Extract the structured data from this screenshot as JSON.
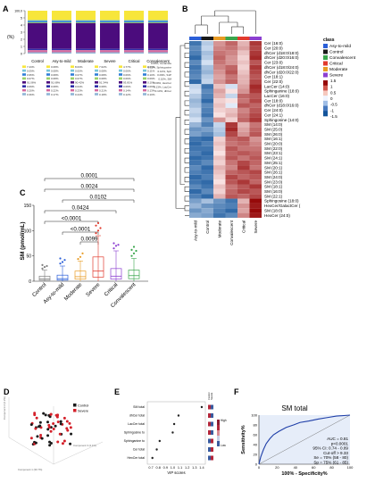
{
  "panels": {
    "A": {
      "letter": "A",
      "yticks": [
        "100.0",
        "5",
        "4",
        "3",
        "2",
        "1",
        "0"
      ],
      "ylabel": "(%)",
      "categories": [
        "Control",
        "Asy-to-mild",
        "Moderate",
        "Severe",
        "Critical",
        "Convalescent"
      ],
      "legend_cols": [
        {
          "name": "Control",
          "rows": [
            "7.43%",
            "0.09%",
            "0.95%",
            "0.07%",
            "91.06%",
            "0.09%",
            "0.20%",
            "0.36%"
          ]
        },
        {
          "name": "Asy-to-mild",
          "rows": [
            "0.08%",
            "0.08%",
            "0.08%",
            "0.08%",
            "91.68%",
            "0.08%",
            "0.22%",
            "0.17%"
          ]
        },
        {
          "name": "Moderate",
          "rows": [
            "8.03%",
            "0.00%",
            "0.07%",
            "0.07%",
            "90.42%",
            "0.04%",
            "0.23%",
            "0.24%"
          ]
        },
        {
          "name": "Severe",
          "rows": [
            "7.02%",
            "0.08%",
            "0.08%",
            "0.08%",
            "91.34%",
            "0.08%",
            "0.21%",
            "0.18%"
          ]
        },
        {
          "name": "Critical",
          "rows": [
            "4.77%",
            "0.06%",
            "0.06%",
            "0.06%",
            "93.81%",
            "0.06%",
            "0.14%",
            "0.12%"
          ]
        },
        {
          "name": "Convalescent",
          "rows": [
            "0.09%",
            "0.11%",
            "0.10%",
            "0.09%",
            "0.10%",
            "0.09%",
            "0.13%",
            "0.10%"
          ]
        }
      ],
      "row_names": [
        "Ceramide",
        "Sphingosine",
        "Sph",
        "S1P",
        "SM",
        "HexCer",
        "LacCer",
        "dhCer"
      ],
      "row_colors": [
        "#f7e63b",
        "#77c4d8",
        "#2f7ed8",
        "#9bd069",
        "#4b0c7d",
        "#2e2ea8",
        "#d46a9f",
        "#8fb5d6"
      ],
      "col_labels_right": [
        "0.09%, Ceramide",
        "0.11%, Sphingosine",
        "0.10%, Sph",
        "0.09%, S1P",
        "0.10%, SM",
        "0.09%, HexCer",
        "0.13%, LacCer",
        "0.10%, dhCer"
      ]
    },
    "B": {
      "letter": "B",
      "legend_title": "class",
      "classes": [
        {
          "name": "Asy-to-mild",
          "color": "#2b5fd8"
        },
        {
          "name": "Control",
          "color": "#1a1a1a"
        },
        {
          "name": "Convalescent",
          "color": "#3aa64c"
        },
        {
          "name": "Critical",
          "color": "#e23b2e"
        },
        {
          "name": "Moderate",
          "color": "#e89b24"
        },
        {
          "name": "Severe",
          "color": "#8c3fd1"
        }
      ],
      "scale_ticks": [
        "1.5",
        "1",
        "0.5",
        "0",
        "-0.5",
        "-1",
        "-1.5"
      ],
      "rows": [
        "Cer (16:0)",
        "Cer (20:0)",
        "dhCer (d18:0/18:0)",
        "dhCer (d20:0/16:0)",
        "Cer (23:0)",
        "dhCer (d18:0/24:0)",
        "dhCer (d20:0/22:0)",
        "Cer (18:1)",
        "Cer (22:0)",
        "LacCer (14:0)",
        "Sphinganine (18:0)",
        "LacCer (16:0)",
        "Cer (18:0)",
        "dhCer (d18:0/16:0)",
        "Cer (24:0)",
        "Cer (24:1)",
        "Sphingosine (14:0)",
        "SM (14:0)",
        "SM (25:0)",
        "SM (26:0)",
        "SM (16:1)",
        "SM (20:0)",
        "SM (22:0)",
        "SM (23:1)",
        "SM (24:1)",
        "SM (25:1)",
        "SM (20:1)",
        "SM (26:1)",
        "SM (24:0)",
        "SM (23:0)",
        "SM (18:1)",
        "SM (16:0)",
        "SM (22:1)",
        "Sphingosine (18:0)",
        "HexCer/GalactCer (",
        "SM (18:0)",
        "HexCer (24:0)"
      ],
      "columns": [
        "Asy-to-mild",
        "Control",
        "Moderate",
        "Convalescent",
        "Critical",
        "Severe"
      ],
      "column_colors": [
        "#2b5fd8",
        "#1a1a1a",
        "#e89b24",
        "#3aa64c",
        "#e23b2e",
        "#8c3fd1"
      ],
      "matrix": [
        [
          -1.2,
          -0.4,
          0.6,
          0.9,
          0.4,
          1.2
        ],
        [
          -1.0,
          -0.3,
          0.7,
          0.8,
          0.5,
          1.1
        ],
        [
          -1.1,
          -0.5,
          0.8,
          0.7,
          0.3,
          1.2
        ],
        [
          -1.3,
          -0.4,
          0.9,
          0.6,
          0.2,
          1.3
        ],
        [
          -1.0,
          -0.2,
          0.8,
          0.6,
          0.3,
          1.0
        ],
        [
          -1.2,
          -0.5,
          0.7,
          0.9,
          0.2,
          1.2
        ],
        [
          -1.1,
          -0.6,
          0.6,
          1.0,
          0.3,
          1.1
        ],
        [
          -1.0,
          -0.4,
          0.5,
          0.8,
          0.4,
          1.0
        ],
        [
          -1.3,
          -0.3,
          0.6,
          0.9,
          0.4,
          1.1
        ],
        [
          -0.3,
          -1.2,
          0.3,
          -0.2,
          0.5,
          1.3
        ],
        [
          -0.2,
          -1.0,
          0.5,
          0.1,
          0.6,
          1.2
        ],
        [
          -0.4,
          -1.1,
          0.4,
          -0.3,
          0.9,
          1.0
        ],
        [
          -0.6,
          -1.3,
          0.2,
          0.1,
          0.8,
          1.1
        ],
        [
          -0.5,
          -1.0,
          0.3,
          -0.1,
          1.0,
          0.9
        ],
        [
          -0.3,
          -1.1,
          0.2,
          0.3,
          0.7,
          1.0
        ],
        [
          -0.4,
          -1.2,
          0.1,
          0.4,
          0.8,
          1.1
        ],
        [
          -0.2,
          -0.9,
          0.6,
          0.2,
          0.9,
          1.2
        ],
        [
          -0.6,
          -1.1,
          -0.3,
          1.2,
          0.4,
          0.8
        ],
        [
          -0.9,
          -0.8,
          -0.4,
          1.3,
          0.5,
          0.9
        ],
        [
          -0.8,
          -1.0,
          -0.5,
          1.1,
          0.6,
          1.0
        ],
        [
          -1.2,
          -1.3,
          0.2,
          0.9,
          1.0,
          0.6
        ],
        [
          -1.3,
          -1.1,
          0.3,
          0.8,
          0.9,
          0.7
        ],
        [
          -1.2,
          -1.2,
          0.2,
          1.0,
          0.8,
          0.8
        ],
        [
          -1.1,
          -1.3,
          0.1,
          0.9,
          1.0,
          0.9
        ],
        [
          -1.3,
          -1.2,
          0.3,
          1.0,
          0.8,
          1.0
        ],
        [
          -1.2,
          -1.0,
          0.2,
          0.8,
          1.1,
          0.9
        ],
        [
          -1.0,
          -1.3,
          0.4,
          0.7,
          1.2,
          0.8
        ],
        [
          -1.1,
          -1.2,
          0.3,
          0.9,
          1.0,
          1.1
        ],
        [
          -1.3,
          -1.1,
          0.2,
          1.1,
          0.9,
          1.0
        ],
        [
          -1.2,
          -1.3,
          0.1,
          1.0,
          1.2,
          0.9
        ],
        [
          -1.0,
          -1.2,
          0.3,
          0.8,
          1.0,
          1.2
        ],
        [
          -1.3,
          -1.0,
          0.2,
          0.9,
          1.1,
          1.0
        ],
        [
          -1.1,
          -1.3,
          0.4,
          1.0,
          0.9,
          1.1
        ],
        [
          -0.8,
          -0.5,
          -0.9,
          -1.2,
          0.4,
          1.5
        ],
        [
          -0.6,
          -0.9,
          -1.0,
          -1.1,
          0.6,
          1.4
        ],
        [
          -0.9,
          -0.7,
          -1.1,
          -1.3,
          0.5,
          1.5
        ],
        [
          -0.7,
          -0.8,
          -1.2,
          -1.0,
          0.7,
          1.4
        ]
      ]
    },
    "C": {
      "letter": "C",
      "ylabel": "SM (pmol/mL)",
      "yticks": [
        "150",
        "100",
        "50",
        "0"
      ],
      "categories": [
        "Control",
        "Asy-to-mild",
        "Moderate",
        "Severe",
        "Critical",
        "Convalescent"
      ],
      "colors": [
        "#7f7f7f",
        "#2b5fd8",
        "#e89b24",
        "#e23b2e",
        "#8c3fd1",
        "#3aa64c"
      ],
      "pvalues": [
        "0.0001",
        "0.0024",
        "0.0102",
        "0.0424",
        "<0.0001",
        "<0.0001",
        "0.0099"
      ]
    },
    "D": {
      "letter": "D",
      "legend": [
        "Control",
        "Severe"
      ],
      "colors": [
        "#1a1a1a",
        "#d4202a"
      ],
      "axes": [
        "Component 1 (30.7%)",
        "Component 2 (6.2%)",
        "Component 3 (4.1%)"
      ]
    },
    "E": {
      "letter": "E",
      "xlabel": "VIP scores",
      "xticks": [
        "0.7",
        "0.8",
        "0.9",
        "1.0",
        "1.1",
        "1.2",
        "1.3",
        "1.4"
      ],
      "col_header": [
        "Control",
        "Severe"
      ],
      "scale": [
        "High",
        "Low"
      ],
      "items": [
        "SM total",
        "dhCer total",
        "LacCer total",
        "Sphingosine to",
        "Sphinganine to",
        "Cer total",
        "HexCer total"
      ],
      "vip": [
        1.4,
        1.08,
        1.02,
        1.0,
        0.82,
        0.78,
        0.72
      ]
    },
    "F": {
      "letter": "F",
      "title": "SM total",
      "xlabel": "100% - Specificity%",
      "ylabel": "Sensitivity%",
      "ticks": [
        "0",
        "20",
        "40",
        "60",
        "80",
        "100"
      ],
      "stats": [
        "AUC = 0.81",
        "p<0.0001",
        "95% CI: 0.74 - 0.89",
        "Cut-off > 9.33",
        "Se = 70% (58 - 80)",
        "Sp = 75% (61 - 85)"
      ]
    }
  }
}
